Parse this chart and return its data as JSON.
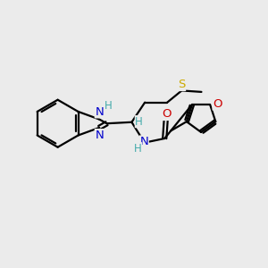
{
  "bg_color": "#ebebeb",
  "atom_colors": {
    "C": "#000000",
    "N": "#0000cc",
    "NH": "#0000cc",
    "O": "#cc0000",
    "S": "#ccaa00",
    "H": "#4aa",
    "H2": "#000000"
  },
  "bond_color": "#000000",
  "bond_width": 1.6,
  "figsize": [
    3.0,
    3.0
  ],
  "dpi": 100,
  "xlim": [
    0,
    10
  ],
  "ylim": [
    0,
    10
  ]
}
